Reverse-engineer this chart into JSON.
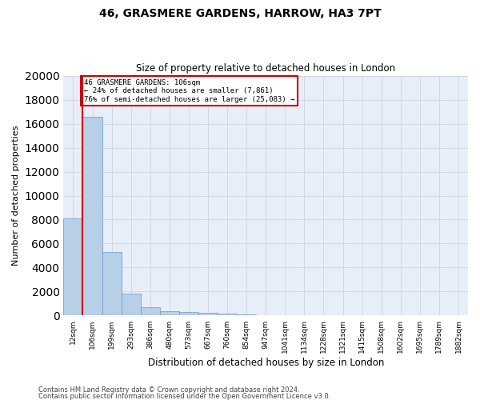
{
  "title1": "46, GRASMERE GARDENS, HARROW, HA3 7PT",
  "title2": "Size of property relative to detached houses in London",
  "xlabel": "Distribution of detached houses by size in London",
  "ylabel": "Number of detached properties",
  "categories": [
    "12sqm",
    "106sqm",
    "199sqm",
    "293sqm",
    "386sqm",
    "480sqm",
    "573sqm",
    "667sqm",
    "760sqm",
    "854sqm",
    "947sqm",
    "1041sqm",
    "1134sqm",
    "1228sqm",
    "1321sqm",
    "1415sqm",
    "1508sqm",
    "1602sqm",
    "1695sqm",
    "1789sqm",
    "1882sqm"
  ],
  "bar_heights": [
    8100,
    16600,
    5300,
    1850,
    700,
    350,
    270,
    210,
    170,
    130,
    0,
    0,
    0,
    0,
    0,
    0,
    0,
    0,
    0,
    0,
    0
  ],
  "bar_color": "#b8cfe8",
  "bar_edgecolor": "#6699cc",
  "property_label": "46 GRASMERE GARDENS: 106sqm",
  "annotation_line1": "← 24% of detached houses are smaller (7,861)",
  "annotation_line2": "76% of semi-detached houses are larger (25,083) →",
  "annotation_box_color": "#ffffff",
  "annotation_box_edgecolor": "#cc0000",
  "vline_color": "#cc0000",
  "ylim": [
    0,
    20000
  ],
  "yticks": [
    0,
    2000,
    4000,
    6000,
    8000,
    10000,
    12000,
    14000,
    16000,
    18000,
    20000
  ],
  "grid_color": "#d0d8e8",
  "bg_color": "#e8eef8",
  "footer1": "Contains HM Land Registry data © Crown copyright and database right 2024.",
  "footer2": "Contains public sector information licensed under the Open Government Licence v3.0."
}
